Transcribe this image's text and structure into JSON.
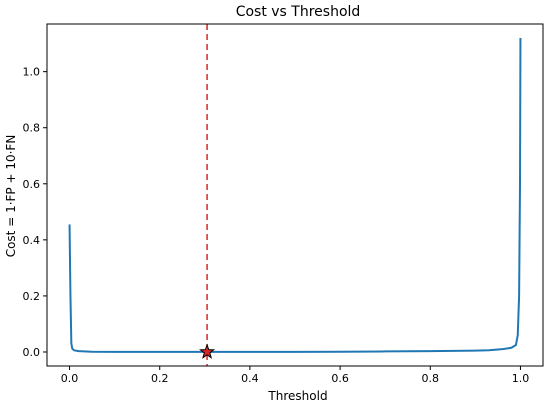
{
  "chart_data": {
    "type": "line",
    "title": "Cost vs Threshold",
    "xlabel": "Threshold",
    "ylabel": "Cost = 1·FP + 10·FN",
    "xlim": [
      -0.05,
      1.05
    ],
    "ylim": [
      -0.05,
      1.17
    ],
    "xticks": [
      0.0,
      0.2,
      0.4,
      0.6,
      0.8,
      1.0
    ],
    "xtick_labels": [
      "0.0",
      "0.2",
      "0.4",
      "0.6",
      "0.8",
      "1.0"
    ],
    "yticks": [
      0.0,
      0.2,
      0.4,
      0.6,
      0.8,
      1.0
    ],
    "ytick_labels": [
      "0.0",
      "0.2",
      "0.4",
      "0.6",
      "0.8",
      "1.0"
    ],
    "grid": false,
    "series": [
      {
        "color": "#1f77b4",
        "x": [
          0.0,
          0.002,
          0.004,
          0.006,
          0.01,
          0.02,
          0.05,
          0.1,
          0.2,
          0.305,
          0.4,
          0.5,
          0.6,
          0.7,
          0.8,
          0.85,
          0.9,
          0.93,
          0.96,
          0.98,
          0.99,
          0.994,
          0.997,
          0.999,
          1.0
        ],
        "y": [
          0.455,
          0.2,
          0.03,
          0.012,
          0.006,
          0.003,
          0.001,
          0.0005,
          0.0003,
          0.0002,
          0.0003,
          0.0005,
          0.0008,
          0.002,
          0.003,
          0.004,
          0.005,
          0.006,
          0.01,
          0.015,
          0.025,
          0.06,
          0.2,
          0.6,
          1.12
        ]
      }
    ],
    "vline": {
      "x": 0.305,
      "color": "#d62728",
      "style": "dashed"
    },
    "marker": {
      "x": 0.305,
      "y": 0.0,
      "shape": "star",
      "color": "#d62728"
    }
  }
}
